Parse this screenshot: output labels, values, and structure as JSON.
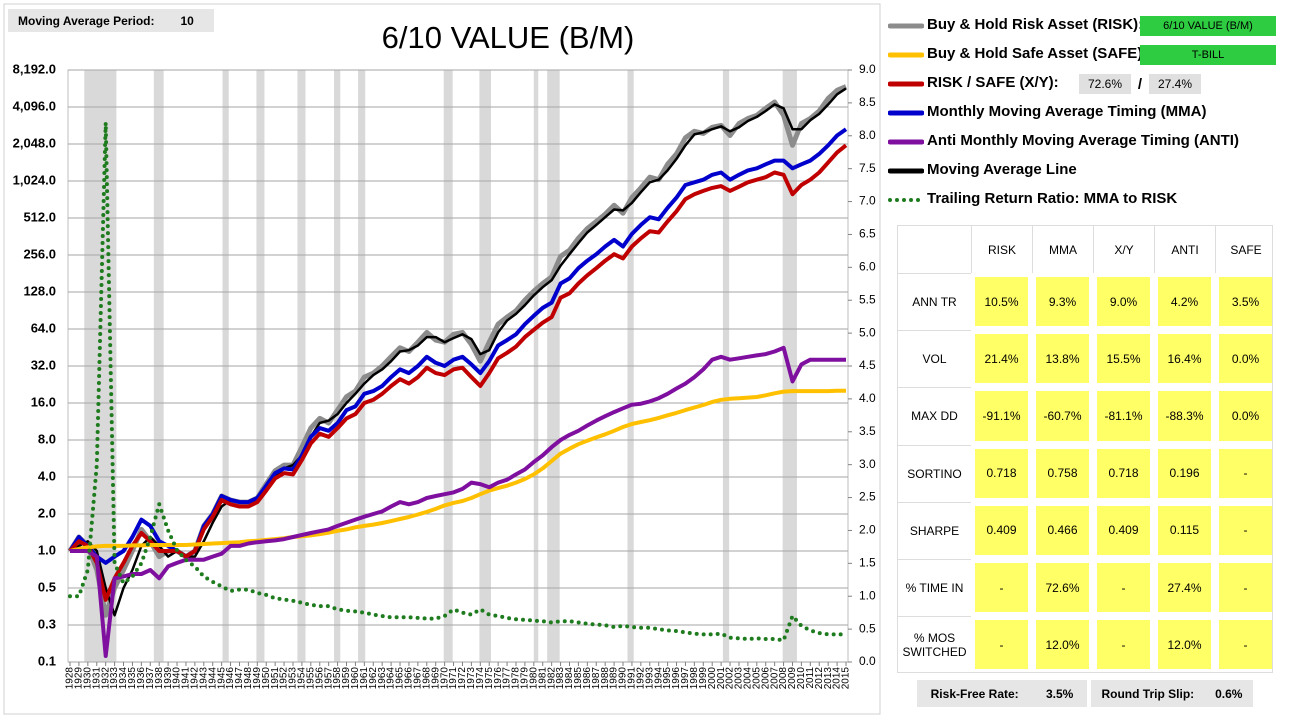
{
  "chart_data": {
    "type": "line",
    "title": "6/10 VALUE (B/M)",
    "yscale": "log",
    "grid": true,
    "x": [
      1928,
      1929,
      1930,
      1931,
      1932,
      1933,
      1934,
      1935,
      1936,
      1937,
      1938,
      1939,
      1940,
      1941,
      1942,
      1943,
      1944,
      1945,
      1946,
      1947,
      1948,
      1949,
      1950,
      1951,
      1952,
      1953,
      1954,
      1955,
      1956,
      1957,
      1958,
      1959,
      1960,
      1961,
      1962,
      1963,
      1964,
      1965,
      1966,
      1967,
      1968,
      1969,
      1970,
      1971,
      1972,
      1973,
      1974,
      1975,
      1976,
      1977,
      1978,
      1979,
      1980,
      1981,
      1982,
      1983,
      1984,
      1985,
      1986,
      1987,
      1988,
      1989,
      1990,
      1991,
      1992,
      1993,
      1994,
      1995,
      1996,
      1997,
      1998,
      1999,
      2000,
      2001,
      2002,
      2003,
      2004,
      2005,
      2006,
      2007,
      2008,
      2009,
      2010,
      2011,
      2012,
      2013,
      2014,
      2015
    ],
    "xlim": [
      1928,
      2015
    ],
    "ylim": [
      0.125,
      8192
    ],
    "yticks": [
      {
        "value": 0.125,
        "label": "0.1"
      },
      {
        "value": 0.25,
        "label": "0.3"
      },
      {
        "value": 0.5,
        "label": "0.5"
      },
      {
        "value": 1,
        "label": "1.0"
      },
      {
        "value": 2,
        "label": "2.0"
      },
      {
        "value": 4,
        "label": "4.0"
      },
      {
        "value": 8,
        "label": "8.0"
      },
      {
        "value": 16,
        "label": "16.0"
      },
      {
        "value": 32,
        "label": "32.0"
      },
      {
        "value": 64,
        "label": "64.0"
      },
      {
        "value": 128,
        "label": "128.0"
      },
      {
        "value": 256,
        "label": "256.0"
      },
      {
        "value": 512,
        "label": "512.0"
      },
      {
        "value": 1024,
        "label": "1,024.0"
      },
      {
        "value": 2048,
        "label": "2,048.0"
      },
      {
        "value": 4096,
        "label": "4,096.0"
      },
      {
        "value": 8192,
        "label": "8,192.0"
      }
    ],
    "y2lim": [
      0,
      9
    ],
    "y2ticks": [
      {
        "value": 0,
        "label": "0.0"
      },
      {
        "value": 0.5,
        "label": "0.5"
      },
      {
        "value": 1,
        "label": "1.0"
      },
      {
        "value": 1.5,
        "label": "1.5"
      },
      {
        "value": 2,
        "label": "2.0"
      },
      {
        "value": 2.5,
        "label": "2.5"
      },
      {
        "value": 3,
        "label": "3.0"
      },
      {
        "value": 3.5,
        "label": "3.5"
      },
      {
        "value": 4,
        "label": "4.0"
      },
      {
        "value": 4.5,
        "label": "4.5"
      },
      {
        "value": 5,
        "label": "5.0"
      },
      {
        "value": 5.5,
        "label": "5.5"
      },
      {
        "value": 6,
        "label": "6.0"
      },
      {
        "value": 6.5,
        "label": "6.5"
      },
      {
        "value": 7,
        "label": "7.0"
      },
      {
        "value": 7.5,
        "label": "7.5"
      },
      {
        "value": 8,
        "label": "8.0"
      },
      {
        "value": 8.5,
        "label": "8.5"
      },
      {
        "value": 9,
        "label": "9.0"
      }
    ],
    "shaded_periods": [
      [
        1929.6,
        1933.2
      ],
      [
        1937.4,
        1938.5
      ],
      [
        1945.1,
        1945.8
      ],
      [
        1948.9,
        1949.8
      ],
      [
        1953.5,
        1954.4
      ],
      [
        1957.6,
        1958.3
      ],
      [
        1960.3,
        1961.1
      ],
      [
        1969.9,
        1970.9
      ],
      [
        1973.9,
        1975.2
      ],
      [
        1980.0,
        1980.5
      ],
      [
        1981.5,
        1982.9
      ],
      [
        1990.5,
        1991.2
      ],
      [
        2001.2,
        2001.9
      ],
      [
        2007.9,
        2009.5
      ]
    ],
    "series": [
      {
        "name": "Buy & Hold Risk Asset (RISK):",
        "color": "#8c8c8c",
        "width": 5,
        "values": [
          1.0,
          1.3,
          1.1,
          0.7,
          0.3,
          0.5,
          0.7,
          1.0,
          1.5,
          1.2,
          0.9,
          1.0,
          1.0,
          0.9,
          1.0,
          1.6,
          2.0,
          2.8,
          2.6,
          2.5,
          2.5,
          2.7,
          3.5,
          4.5,
          5,
          5,
          7,
          10,
          12,
          11,
          14,
          18,
          20,
          26,
          28,
          32,
          38,
          45,
          42,
          50,
          60,
          52,
          50,
          58,
          60,
          48,
          35,
          50,
          70,
          80,
          90,
          110,
          130,
          150,
          170,
          250,
          280,
          350,
          420,
          480,
          550,
          650,
          560,
          750,
          900,
          1100,
          1050,
          1400,
          1700,
          2300,
          2600,
          2500,
          2800,
          2900,
          2400,
          3000,
          3300,
          3500,
          4000,
          4500,
          3500,
          2000,
          3000,
          3300,
          3800,
          4800,
          5600,
          6000
        ]
      },
      {
        "name": "Buy & Hold Safe Asset (SAFE):",
        "color": "#ffc000",
        "width": 4,
        "values": [
          1.0,
          1.04,
          1.07,
          1.09,
          1.1,
          1.1,
          1.1,
          1.11,
          1.11,
          1.12,
          1.12,
          1.12,
          1.12,
          1.12,
          1.13,
          1.14,
          1.15,
          1.16,
          1.17,
          1.18,
          1.2,
          1.21,
          1.23,
          1.25,
          1.27,
          1.3,
          1.32,
          1.34,
          1.37,
          1.41,
          1.46,
          1.5,
          1.56,
          1.6,
          1.64,
          1.69,
          1.75,
          1.82,
          1.89,
          1.98,
          2.08,
          2.2,
          2.35,
          2.46,
          2.55,
          2.7,
          2.9,
          3.1,
          3.25,
          3.4,
          3.6,
          3.85,
          4.2,
          4.7,
          5.4,
          6.2,
          6.8,
          7.4,
          7.9,
          8.4,
          8.9,
          9.5,
          10.2,
          10.8,
          11.2,
          11.6,
          12.1,
          12.7,
          13.3,
          14.0,
          14.7,
          15.4,
          16.3,
          17.0,
          17.3,
          17.5,
          17.7,
          17.9,
          18.5,
          19.2,
          19.8,
          20.0,
          20.0,
          20.0,
          20.0,
          20.0,
          20.1,
          20.1
        ]
      },
      {
        "name": "RISK / SAFE (X/Y):",
        "color": "#c00000",
        "width": 4,
        "values": [
          1.0,
          1.2,
          1.1,
          0.8,
          0.4,
          0.6,
          0.8,
          1.1,
          1.4,
          1.2,
          1.0,
          1.0,
          1.0,
          0.9,
          1.0,
          1.5,
          1.9,
          2.6,
          2.4,
          2.3,
          2.3,
          2.5,
          3.1,
          3.9,
          4.3,
          4.2,
          5.5,
          7.5,
          9,
          8.5,
          10,
          12,
          13,
          16,
          17,
          19,
          22,
          25,
          23,
          26,
          31,
          28,
          27,
          30,
          31,
          26,
          22,
          28,
          37,
          41,
          46,
          55,
          63,
          72,
          80,
          115,
          125,
          150,
          175,
          200,
          230,
          260,
          240,
          300,
          350,
          400,
          390,
          480,
          580,
          730,
          800,
          850,
          900,
          930,
          850,
          920,
          1000,
          1050,
          1100,
          1200,
          1150,
          800,
          950,
          1050,
          1200,
          1450,
          1750,
          2000
        ]
      },
      {
        "name": "Monthly Moving Average Timing (MMA)",
        "color": "#0000cc",
        "width": 4,
        "values": [
          1.0,
          1.3,
          1.1,
          0.9,
          0.8,
          0.9,
          1.0,
          1.3,
          1.8,
          1.6,
          1.2,
          1.1,
          1.0,
          0.9,
          1.0,
          1.6,
          2.0,
          2.8,
          2.6,
          2.5,
          2.5,
          2.7,
          3.4,
          4.3,
          4.7,
          4.6,
          6,
          8.5,
          10,
          9.5,
          11,
          14,
          15,
          19,
          20,
          22,
          26,
          30,
          28,
          32,
          38,
          34,
          32,
          36,
          38,
          33,
          28,
          35,
          47,
          52,
          58,
          70,
          82,
          95,
          105,
          150,
          165,
          200,
          230,
          260,
          300,
          340,
          300,
          380,
          450,
          520,
          500,
          620,
          750,
          950,
          1000,
          1050,
          1150,
          1200,
          1050,
          1150,
          1250,
          1300,
          1400,
          1500,
          1500,
          1300,
          1400,
          1500,
          1700,
          2000,
          2400,
          2700
        ]
      },
      {
        "name": "Anti Monthly Moving Average Timing (ANTI)",
        "color": "#7f0f9f",
        "width": 4,
        "values": [
          1.0,
          1.0,
          1.0,
          0.9,
          0.14,
          0.6,
          0.62,
          0.65,
          0.65,
          0.7,
          0.6,
          0.75,
          0.8,
          0.85,
          0.85,
          0.85,
          0.9,
          0.95,
          1.1,
          1.1,
          1.15,
          1.18,
          1.2,
          1.22,
          1.25,
          1.3,
          1.35,
          1.4,
          1.45,
          1.5,
          1.6,
          1.7,
          1.8,
          1.9,
          2.0,
          2.1,
          2.3,
          2.5,
          2.4,
          2.5,
          2.7,
          2.8,
          2.9,
          3.0,
          3.2,
          3.6,
          3.5,
          3.3,
          3.6,
          3.8,
          4.2,
          4.6,
          5.3,
          6.0,
          7.0,
          8.0,
          8.8,
          9.5,
          10.5,
          11.5,
          12.5,
          13.5,
          14.5,
          15.5,
          15.8,
          16.5,
          17.5,
          19,
          21,
          23,
          26,
          30,
          36,
          38,
          36,
          37,
          38,
          39,
          40,
          42,
          45,
          24,
          33,
          36,
          36,
          36,
          36,
          36
        ]
      },
      {
        "name": "Moving Average Line",
        "color": "#000000",
        "width": 2.5,
        "values": [
          1.0,
          1.1,
          1.2,
          1.0,
          0.5,
          0.3,
          0.5,
          0.7,
          1.1,
          1.3,
          1.1,
          0.9,
          1.0,
          0.9,
          0.9,
          1.2,
          1.7,
          2.3,
          2.6,
          2.5,
          2.5,
          2.6,
          3.1,
          4.0,
          4.7,
          5,
          6,
          8.5,
          11,
          11.5,
          13,
          16,
          19,
          23,
          27,
          30,
          35,
          42,
          43,
          47,
          55,
          55,
          50,
          54,
          58,
          53,
          40,
          43,
          60,
          75,
          85,
          100,
          120,
          140,
          160,
          210,
          260,
          320,
          390,
          450,
          520,
          600,
          590,
          680,
          830,
          1000,
          1050,
          1250,
          1550,
          2000,
          2450,
          2550,
          2700,
          2850,
          2600,
          2800,
          3150,
          3400,
          3800,
          4300,
          4000,
          2700,
          2700,
          3200,
          3600,
          4300,
          5200,
          5800
        ]
      },
      {
        "name": "Trailing Return Ratio: MMA to RISK",
        "color": "#1e7b1e",
        "width": 4,
        "dash": "dotted",
        "axis": "y2",
        "values": [
          1.0,
          1.0,
          1.4,
          3.0,
          8.2,
          1.5,
          1.2,
          1.3,
          1.5,
          1.9,
          2.4,
          2.0,
          1.7,
          1.55,
          1.45,
          1.3,
          1.22,
          1.15,
          1.08,
          1.1,
          1.1,
          1.05,
          1.02,
          0.97,
          0.95,
          0.93,
          0.9,
          0.87,
          0.85,
          0.85,
          0.8,
          0.78,
          0.77,
          0.75,
          0.72,
          0.7,
          0.68,
          0.68,
          0.68,
          0.67,
          0.66,
          0.66,
          0.7,
          0.8,
          0.75,
          0.72,
          0.8,
          0.72,
          0.7,
          0.67,
          0.65,
          0.64,
          0.63,
          0.62,
          0.6,
          0.62,
          0.62,
          0.6,
          0.58,
          0.57,
          0.56,
          0.53,
          0.55,
          0.53,
          0.52,
          0.52,
          0.5,
          0.48,
          0.47,
          0.45,
          0.43,
          0.42,
          0.42,
          0.43,
          0.37,
          0.36,
          0.35,
          0.36,
          0.35,
          0.35,
          0.33,
          0.7,
          0.55,
          0.48,
          0.44,
          0.42,
          0.42,
          0.42
        ]
      }
    ]
  },
  "controls": {
    "ma_label": "Moving Average Period:",
    "ma_value": "10",
    "risk_asset": "6/10 VALUE (B/M)",
    "safe_asset": "T-BILL",
    "risk_weight": "72.6%",
    "separator": "/",
    "safe_weight": "27.4%"
  },
  "stats_table": {
    "columns": [
      "RISK",
      "MMA",
      "X/Y",
      "ANTI",
      "SAFE"
    ],
    "rows": [
      {
        "label": "ANN TR",
        "cells": [
          "10.5%",
          "9.3%",
          "9.0%",
          "4.2%",
          "3.5%"
        ]
      },
      {
        "label": "VOL",
        "cells": [
          "21.4%",
          "13.8%",
          "15.5%",
          "16.4%",
          "0.0%"
        ]
      },
      {
        "label": "MAX DD",
        "cells": [
          "-91.1%",
          "-60.7%",
          "-81.1%",
          "-88.3%",
          "0.0%"
        ]
      },
      {
        "label": "SORTINO",
        "cells": [
          "0.718",
          "0.758",
          "0.718",
          "0.196",
          "-"
        ]
      },
      {
        "label": "SHARPE",
        "cells": [
          "0.409",
          "0.466",
          "0.409",
          "0.115",
          "-"
        ]
      },
      {
        "label": "% TIME IN",
        "cells": [
          "-",
          "72.6%",
          "-",
          "27.4%",
          "-"
        ]
      },
      {
        "label": "% MOS\nSWITCHED",
        "cells": [
          "-",
          "12.0%",
          "-",
          "12.0%",
          "-"
        ]
      }
    ]
  },
  "footer": {
    "rf_label": "Risk-Free Rate:",
    "rf_value": "3.5%",
    "slip_label": "Round Trip Slip:",
    "slip_value": "0.6%"
  }
}
